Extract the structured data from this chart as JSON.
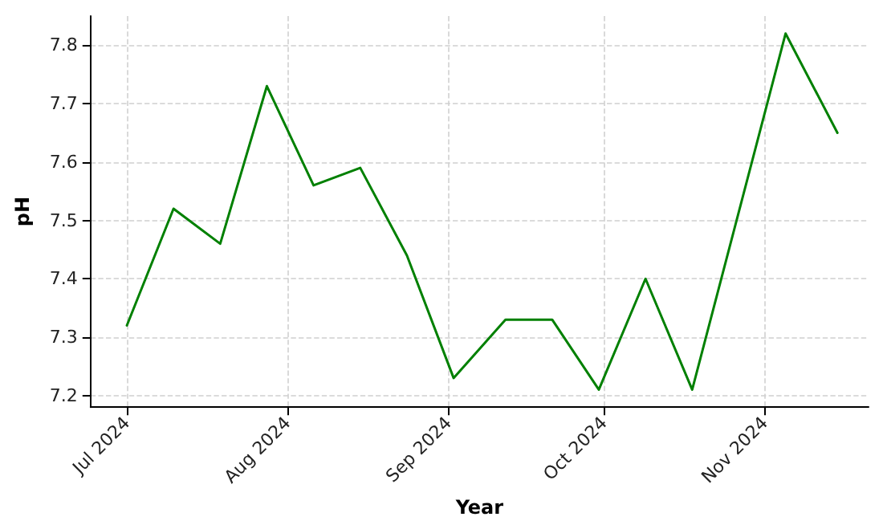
{
  "chart_data": {
    "type": "line",
    "xlabel": "Year",
    "ylabel": "pH",
    "x": [
      "2024-07-01",
      "2024-07-10",
      "2024-07-19",
      "2024-07-28",
      "2024-08-06",
      "2024-08-15",
      "2024-08-24",
      "2024-09-02",
      "2024-09-12",
      "2024-09-21",
      "2024-09-30",
      "2024-10-09",
      "2024-10-18",
      "2024-11-05",
      "2024-11-15"
    ],
    "series": [
      {
        "color": "#008000",
        "values": [
          7.32,
          7.52,
          7.46,
          7.73,
          7.56,
          7.59,
          7.44,
          7.23,
          7.33,
          7.33,
          7.21,
          7.4,
          7.21,
          7.82,
          7.65
        ]
      }
    ],
    "xlim": [
      "2024-06-24",
      "2024-11-21"
    ],
    "xticks": [
      {
        "value": "2024-07-01",
        "label": "Jul 2024"
      },
      {
        "value": "2024-08-01",
        "label": "Aug 2024"
      },
      {
        "value": "2024-09-01",
        "label": "Sep 2024"
      },
      {
        "value": "2024-10-01",
        "label": "Oct 2024"
      },
      {
        "value": "2024-11-01",
        "label": "Nov 2024"
      }
    ],
    "ylim": [
      7.18,
      7.85
    ],
    "yticks": [
      7.2,
      7.3,
      7.4,
      7.5,
      7.6,
      7.7,
      7.8
    ],
    "grid": true,
    "marker": "none",
    "line_style": "solid"
  }
}
